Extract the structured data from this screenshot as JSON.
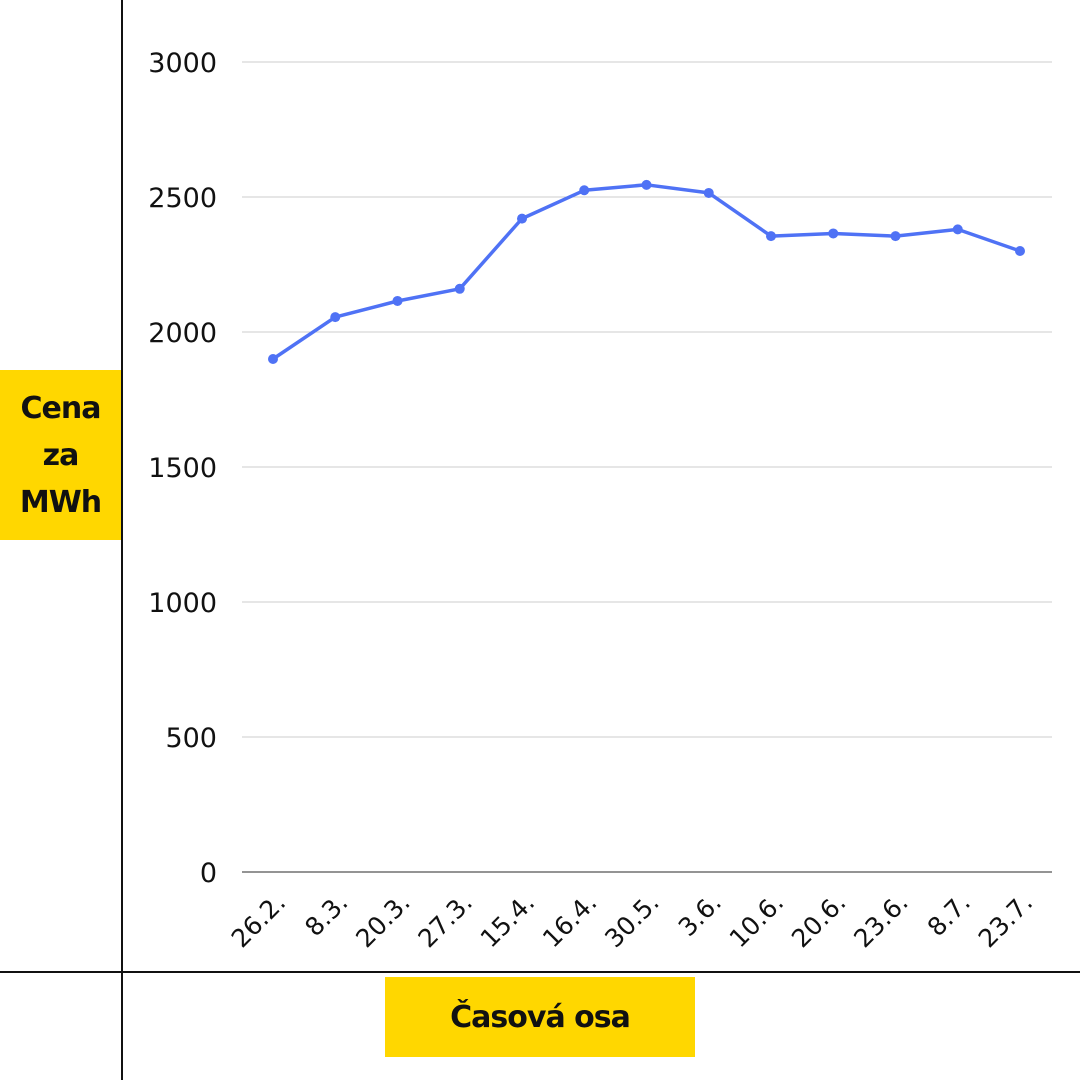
{
  "colors": {
    "line": "#4F72F5",
    "label_bg": "#FFD700",
    "grid": "#CCCCCC",
    "axis": "#111111"
  },
  "chart_data": {
    "type": "line",
    "title": "",
    "xlabel": "Časová osa",
    "ylabel_lines": [
      "Cena",
      "za",
      "MWh"
    ],
    "categories": [
      "26.2.",
      "8.3.",
      "20.3.",
      "27.3.",
      "15.4.",
      "16.4.",
      "30.5.",
      "3.6.",
      "10.6.",
      "20.6.",
      "23.6.",
      "8.7.",
      "23.7."
    ],
    "series": [
      {
        "values": [
          1900,
          2055,
          2115,
          2160,
          2420,
          2525,
          2545,
          2515,
          2355,
          2365,
          2355,
          2380,
          2300
        ]
      }
    ],
    "ylim": [
      0,
      3000
    ],
    "yticks": [
      0,
      500,
      1000,
      1500,
      2000,
      2500,
      3000
    ],
    "grid": true,
    "legend": "none"
  }
}
